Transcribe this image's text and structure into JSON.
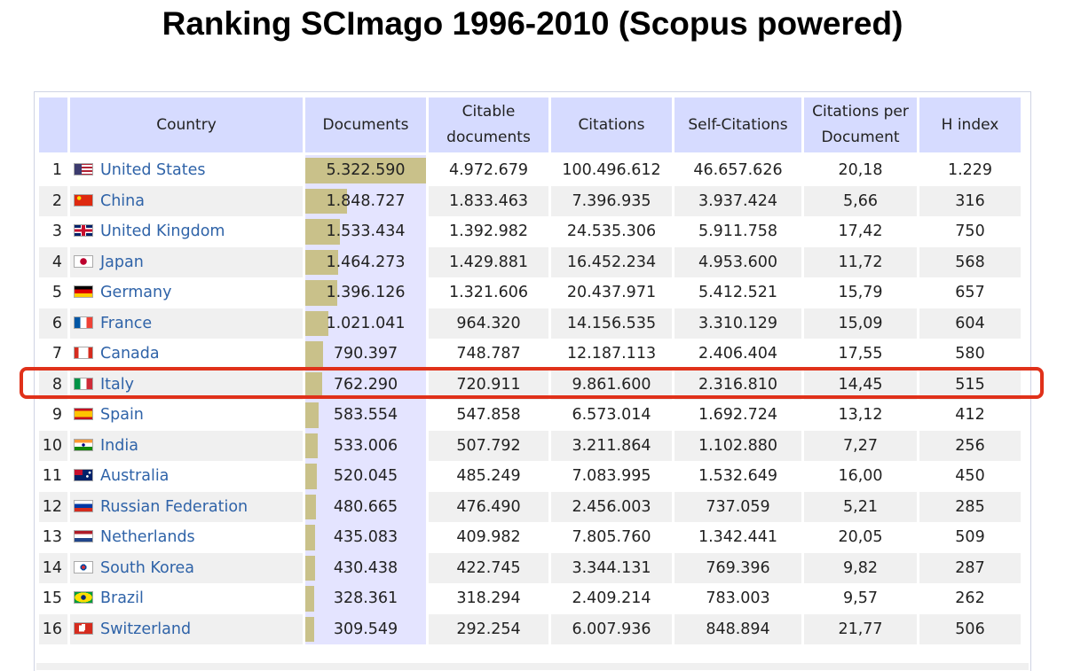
{
  "title": "Ranking SCImago 1996-2010 (Scopus powered)",
  "columns": {
    "country": "Country",
    "documents": "Documents",
    "citable_1": "Citable",
    "citable_2": "documents",
    "citations": "Citations",
    "self_citations": "Self-Citations",
    "cpd_1": "Citations per",
    "cpd_2": "Document",
    "h_index": "H index"
  },
  "highlighted_rank": 8,
  "rows": [
    {
      "rank": "1",
      "country": "United States",
      "flag": "us-flag-icon",
      "documents": "5.322.590",
      "docs_num": 5322590,
      "citable": "4.972.679",
      "citations": "100.496.612",
      "self_citations": "46.657.626",
      "cpd": "20,18",
      "h_index": "1.229"
    },
    {
      "rank": "2",
      "country": "China",
      "flag": "cn-flag-icon",
      "documents": "1.848.727",
      "docs_num": 1848727,
      "citable": "1.833.463",
      "citations": "7.396.935",
      "self_citations": "3.937.424",
      "cpd": "5,66",
      "h_index": "316"
    },
    {
      "rank": "3",
      "country": "United Kingdom",
      "flag": "gb-flag-icon",
      "documents": "1.533.434",
      "docs_num": 1533434,
      "citable": "1.392.982",
      "citations": "24.535.306",
      "self_citations": "5.911.758",
      "cpd": "17,42",
      "h_index": "750"
    },
    {
      "rank": "4",
      "country": "Japan",
      "flag": "jp-flag-icon",
      "documents": "1.464.273",
      "docs_num": 1464273,
      "citable": "1.429.881",
      "citations": "16.452.234",
      "self_citations": "4.953.600",
      "cpd": "11,72",
      "h_index": "568"
    },
    {
      "rank": "5",
      "country": "Germany",
      "flag": "de-flag-icon",
      "documents": "1.396.126",
      "docs_num": 1396126,
      "citable": "1.321.606",
      "citations": "20.437.971",
      "self_citations": "5.412.521",
      "cpd": "15,79",
      "h_index": "657"
    },
    {
      "rank": "6",
      "country": "France",
      "flag": "fr-flag-icon",
      "documents": "1.021.041",
      "docs_num": 1021041,
      "citable": "964.320",
      "citations": "14.156.535",
      "self_citations": "3.310.129",
      "cpd": "15,09",
      "h_index": "604"
    },
    {
      "rank": "7",
      "country": "Canada",
      "flag": "ca-flag-icon",
      "documents": "790.397",
      "docs_num": 790397,
      "citable": "748.787",
      "citations": "12.187.113",
      "self_citations": "2.406.404",
      "cpd": "17,55",
      "h_index": "580"
    },
    {
      "rank": "8",
      "country": "Italy",
      "flag": "it-flag-icon",
      "documents": "762.290",
      "docs_num": 762290,
      "citable": "720.911",
      "citations": "9.861.600",
      "self_citations": "2.316.810",
      "cpd": "14,45",
      "h_index": "515"
    },
    {
      "rank": "9",
      "country": "Spain",
      "flag": "es-flag-icon",
      "documents": "583.554",
      "docs_num": 583554,
      "citable": "547.858",
      "citations": "6.573.014",
      "self_citations": "1.692.724",
      "cpd": "13,12",
      "h_index": "412"
    },
    {
      "rank": "10",
      "country": "India",
      "flag": "in-flag-icon",
      "documents": "533.006",
      "docs_num": 533006,
      "citable": "507.792",
      "citations": "3.211.864",
      "self_citations": "1.102.880",
      "cpd": "7,27",
      "h_index": "256"
    },
    {
      "rank": "11",
      "country": "Australia",
      "flag": "au-flag-icon",
      "documents": "520.045",
      "docs_num": 520045,
      "citable": "485.249",
      "citations": "7.083.995",
      "self_citations": "1.532.649",
      "cpd": "16,00",
      "h_index": "450"
    },
    {
      "rank": "12",
      "country": "Russian Federation",
      "flag": "ru-flag-icon",
      "documents": "480.665",
      "docs_num": 480665,
      "citable": "476.490",
      "citations": "2.456.003",
      "self_citations": "737.059",
      "cpd": "5,21",
      "h_index": "285"
    },
    {
      "rank": "13",
      "country": "Netherlands",
      "flag": "nl-flag-icon",
      "documents": "435.083",
      "docs_num": 435083,
      "citable": "409.982",
      "citations": "7.805.760",
      "self_citations": "1.342.441",
      "cpd": "20,05",
      "h_index": "509"
    },
    {
      "rank": "14",
      "country": "South Korea",
      "flag": "kr-flag-icon",
      "documents": "430.438",
      "docs_num": 430438,
      "citable": "422.745",
      "citations": "3.344.131",
      "self_citations": "769.396",
      "cpd": "9,82",
      "h_index": "287"
    },
    {
      "rank": "15",
      "country": "Brazil",
      "flag": "br-flag-icon",
      "documents": "328.361",
      "docs_num": 328361,
      "citable": "318.294",
      "citations": "2.409.214",
      "self_citations": "783.003",
      "cpd": "9,57",
      "h_index": "262"
    },
    {
      "rank": "16",
      "country": "Switzerland",
      "flag": "ch-flag-icon",
      "documents": "309.549",
      "docs_num": 309549,
      "citable": "292.254",
      "citations": "6.007.936",
      "self_citations": "848.894",
      "cpd": "21,77",
      "h_index": "506"
    }
  ]
}
